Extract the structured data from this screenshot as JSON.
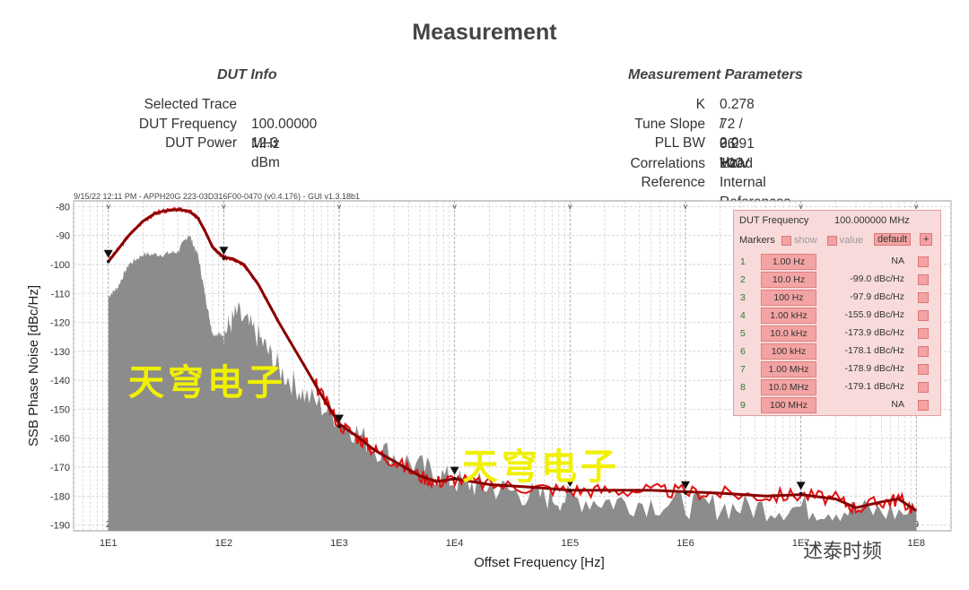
{
  "title": "Measurement",
  "dut_info": {
    "heading": "DUT Info",
    "rows": [
      {
        "label": "Selected Trace",
        "value": ""
      },
      {
        "label": "DUT Frequency",
        "value": "100.00000 MHz"
      },
      {
        "label": "DUT Power",
        "value": "12.3 dBm"
      }
    ]
  },
  "measurement_parameters": {
    "heading": "Measurement Parameters",
    "rows": [
      {
        "label": "K",
        "value": "0.278 / 0.291 V/rad"
      },
      {
        "label": "Tune Slope",
        "value": "72 / 96 Hz/V"
      },
      {
        "label": "PLL BW",
        "value": "2.0 Hz"
      },
      {
        "label": "Correlations",
        "value": "100"
      },
      {
        "label": "Reference",
        "value": "Internal References - Standard"
      }
    ]
  },
  "header_stamp": "9/15/22 12:11 PM - APPH20G 223-03D316F00-0470 (v0.4.176) - GUI v1.3.18b1",
  "marker_panel": {
    "dut_label": "DUT Frequency",
    "dut_value": "100.000000 MHz",
    "markers_label": "Markers",
    "show_label": "show",
    "value_label": "value",
    "default_label": "default",
    "plus": "+",
    "rows": [
      {
        "idx": "1",
        "freq": "1.00 Hz",
        "value": "NA"
      },
      {
        "idx": "2",
        "freq": "10.0 Hz",
        "value": "-99.0 dBc/Hz"
      },
      {
        "idx": "3",
        "freq": "100 Hz",
        "value": "-97.9 dBc/Hz"
      },
      {
        "idx": "4",
        "freq": "1.00 kHz",
        "value": "-155.9 dBc/Hz"
      },
      {
        "idx": "5",
        "freq": "10.0 kHz",
        "value": "-173.9 dBc/Hz"
      },
      {
        "idx": "6",
        "freq": "100 kHz",
        "value": "-178.1 dBc/Hz"
      },
      {
        "idx": "7",
        "freq": "1.00 MHz",
        "value": "-178.9 dBc/Hz"
      },
      {
        "idx": "8",
        "freq": "10.0 MHz",
        "value": "-179.1 dBc/Hz"
      },
      {
        "idx": "9",
        "freq": "100 MHz",
        "value": "NA"
      }
    ]
  },
  "watermarks": [
    "天穹电子",
    "天穹电子"
  ],
  "logo_text": "述泰时频",
  "colors": {
    "trace": "#8b0000",
    "raw_trace": "#e01010",
    "spurs": "#8c8c8c",
    "grid": "#c8c8c8",
    "panel_bg": "#f8dada"
  },
  "chart_data": {
    "type": "line",
    "xlabel": "Offset Frequency [Hz]",
    "ylabel": "SSB Phase Noise [dBc/Hz]",
    "x_scale": "log",
    "xlim": [
      5,
      200000000
    ],
    "ylim": [
      -192,
      -78
    ],
    "x_ticks": [
      {
        "value": 10,
        "label": "1E1"
      },
      {
        "value": 100,
        "label": "1E2"
      },
      {
        "value": 1000,
        "label": "1E3"
      },
      {
        "value": 10000,
        "label": "1E4"
      },
      {
        "value": 100000,
        "label": "1E5"
      },
      {
        "value": 1000000,
        "label": "1E6"
      },
      {
        "value": 10000000,
        "label": "1E7"
      },
      {
        "value": 100000000,
        "label": "1E8"
      }
    ],
    "y_ticks": [
      -80,
      -90,
      -100,
      -110,
      -120,
      -130,
      -140,
      -150,
      -160,
      -170,
      -180,
      -190
    ],
    "marker_numbers": [
      {
        "value": 10,
        "label": "2"
      },
      {
        "value": 100,
        "label": "3"
      },
      {
        "value": 1000,
        "label": "4"
      },
      {
        "value": 10000,
        "label": "5"
      },
      {
        "value": 100000,
        "label": "6"
      },
      {
        "value": 1000000,
        "label": "7"
      },
      {
        "value": 10000000,
        "label": "8"
      },
      {
        "value": 100000000,
        "label": "9"
      }
    ],
    "markers": [
      {
        "x": 10,
        "y": -99.0
      },
      {
        "x": 100,
        "y": -97.9
      },
      {
        "x": 1000,
        "y": -155.9
      },
      {
        "x": 10000,
        "y": -173.9
      },
      {
        "x": 100000,
        "y": -178.1
      },
      {
        "x": 1000000,
        "y": -178.9
      },
      {
        "x": 10000000,
        "y": -179.1
      }
    ],
    "series": [
      {
        "type": "line",
        "x": [
          10,
          12,
          15,
          20,
          25,
          30,
          40,
          50,
          60,
          70,
          80,
          90,
          100,
          120,
          150,
          200,
          300,
          500,
          700,
          1000,
          1500,
          2000,
          3000,
          5000,
          7000,
          10000,
          20000,
          50000,
          100000,
          200000,
          500000,
          1000000,
          2000000,
          5000000,
          10000000,
          20000000,
          30000000,
          50000000,
          70000000,
          100000000
        ],
        "y": [
          -99,
          -95,
          -90,
          -85,
          -82.5,
          -81.5,
          -81,
          -81.5,
          -84,
          -89,
          -94,
          -96,
          -97.5,
          -98,
          -100,
          -107,
          -120,
          -135,
          -145,
          -155,
          -160,
          -164,
          -168,
          -173,
          -175,
          -174,
          -176,
          -177,
          -178,
          -178,
          -178,
          -178.5,
          -179,
          -180,
          -179.5,
          -181,
          -184,
          -182,
          -181,
          -185
        ]
      },
      {
        "type": "area",
        "x": [
          10,
          12,
          15,
          20,
          30,
          40,
          50,
          60,
          70,
          80,
          90,
          100,
          130,
          200,
          300,
          500,
          1000,
          2000,
          5000,
          10000,
          20000,
          50000,
          100000,
          300000,
          1000000,
          3000000,
          10000000,
          30000000,
          100000000
        ],
        "y": [
          -111,
          -108,
          -100,
          -96.5,
          -96.5,
          -95.5,
          -89.5,
          -97,
          -112,
          -124,
          -124,
          -124,
          -117,
          -125,
          -136,
          -145,
          -153,
          -163,
          -170,
          -175,
          -177,
          -180,
          -181,
          -182,
          -183,
          -184,
          -184,
          -185,
          -186
        ]
      }
    ]
  }
}
